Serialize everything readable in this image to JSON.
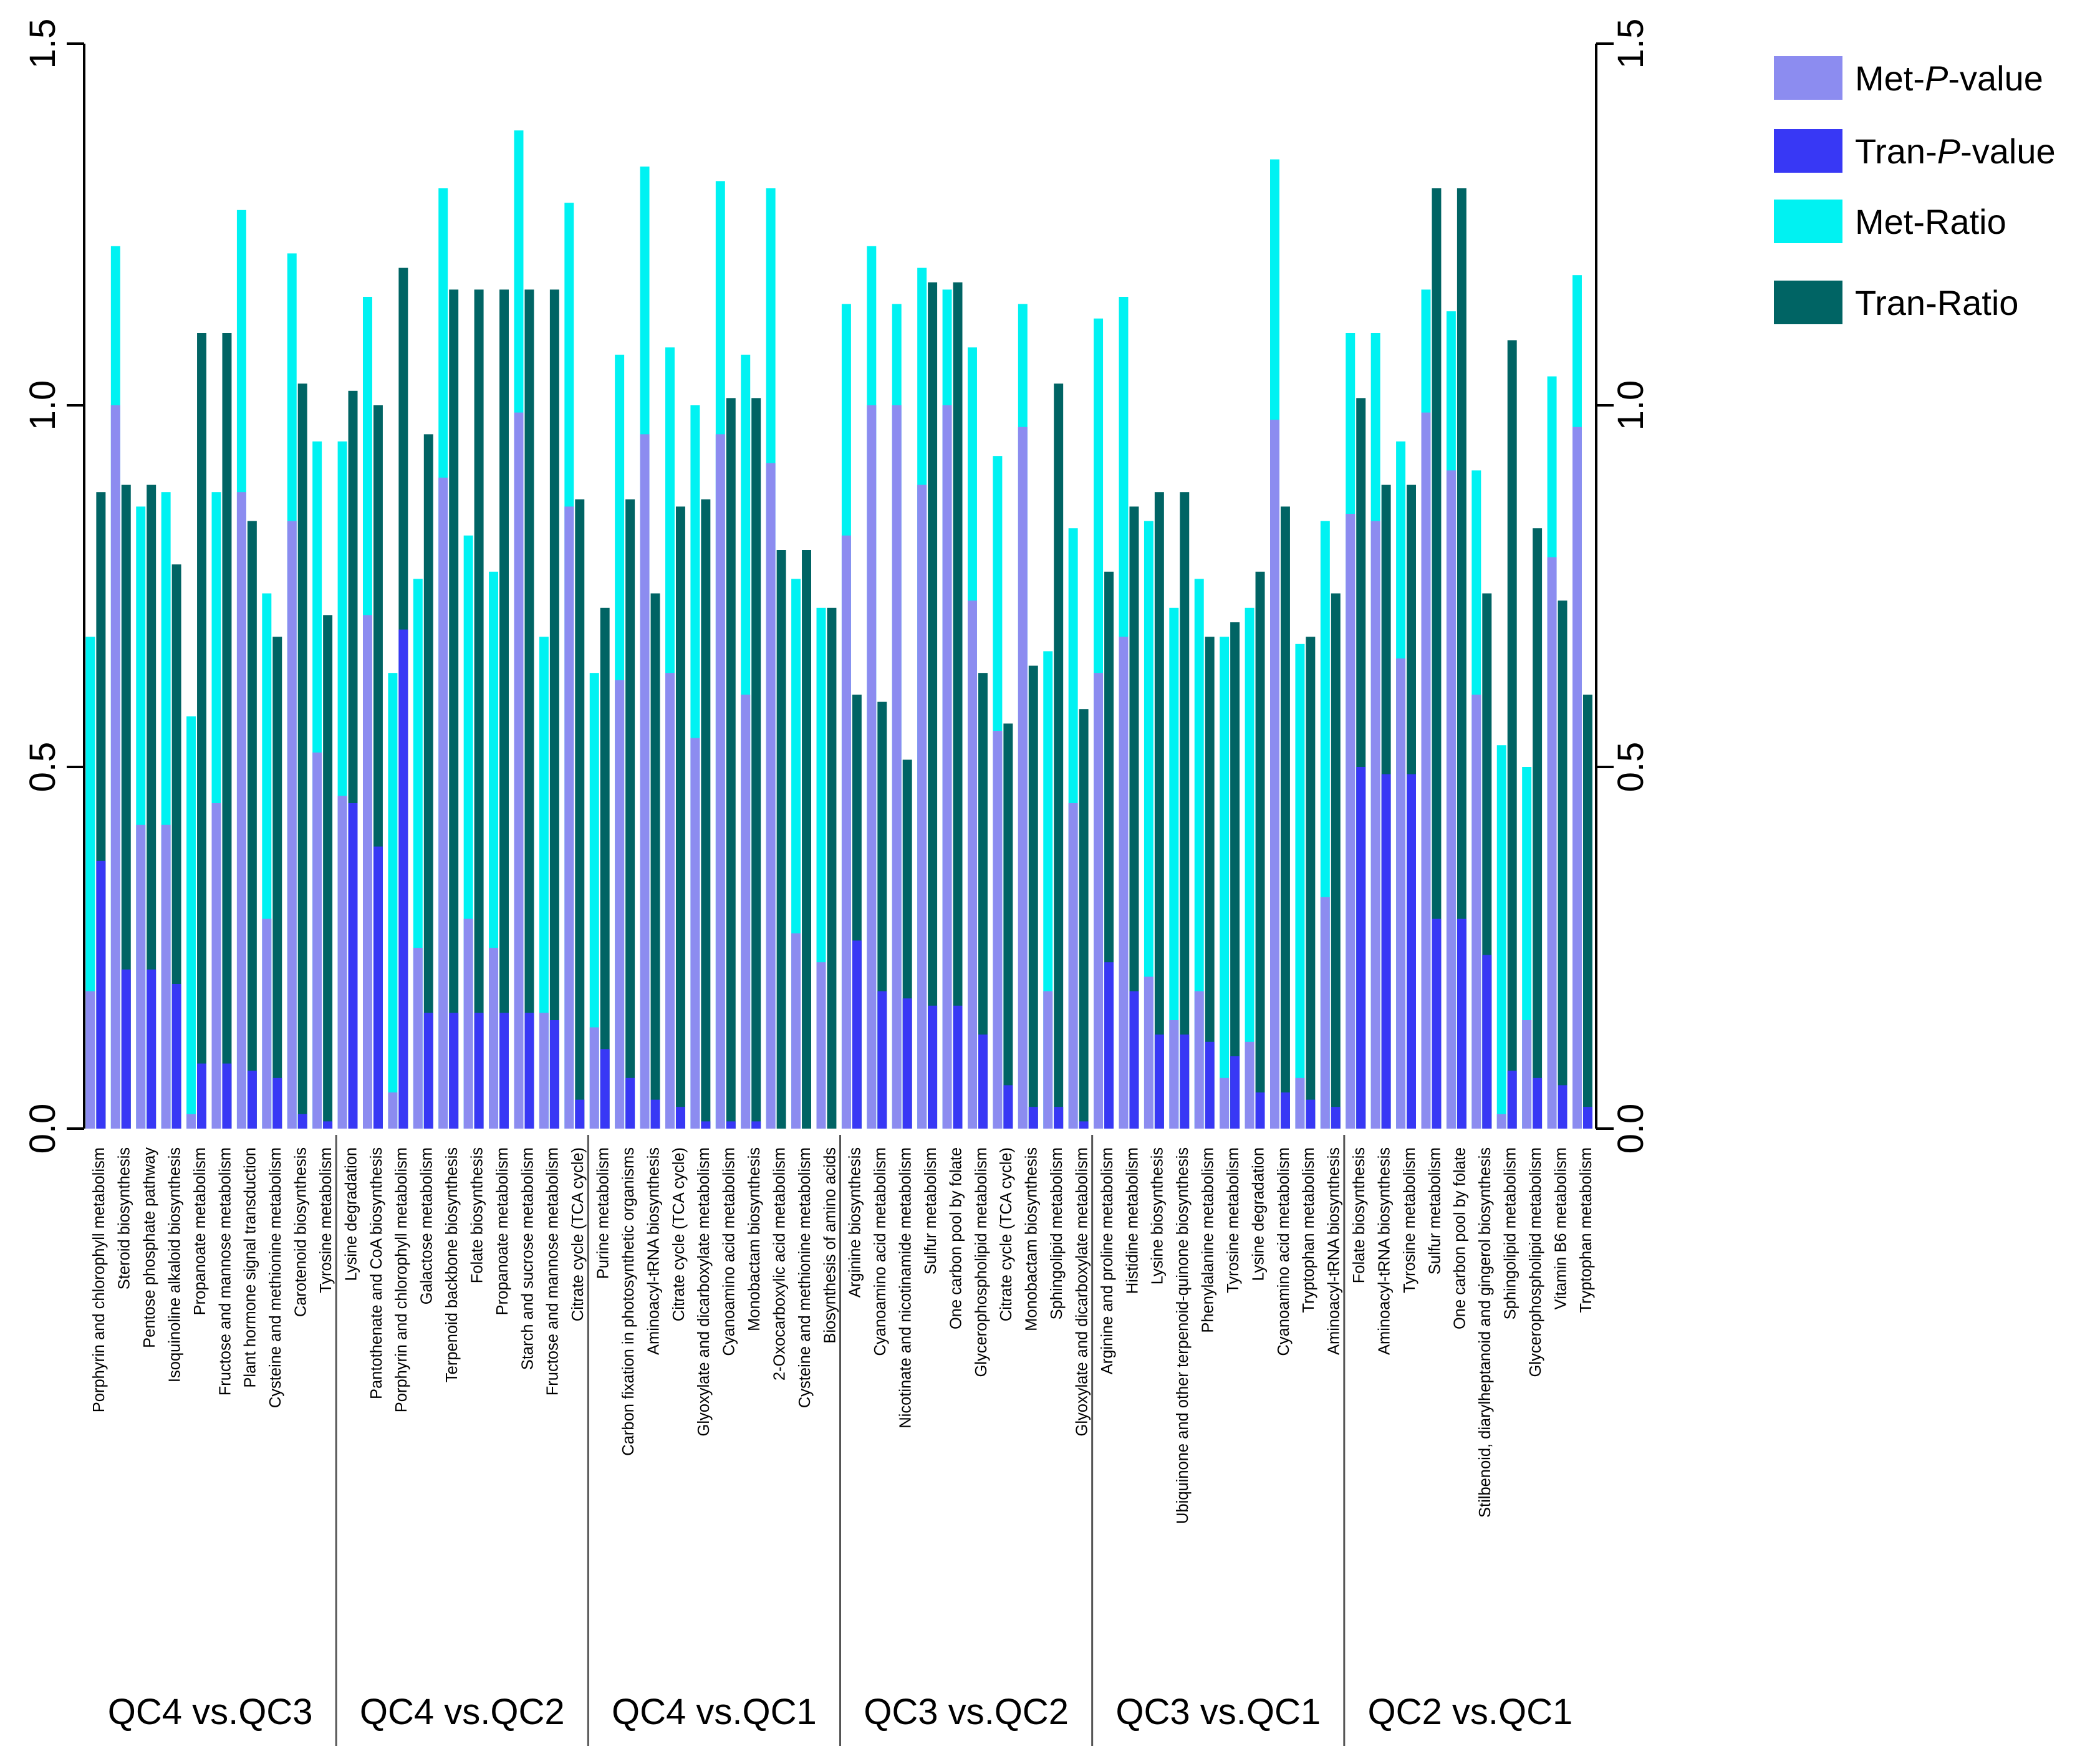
{
  "chart_data": {
    "type": "bar",
    "ylim": [
      0,
      1.5
    ],
    "y_ticks": [
      "0.0",
      "0.5",
      "1.0",
      "1.5"
    ],
    "colors": {
      "met_p": "#8C8CF0",
      "tran_p": "#3838F5",
      "met_ratio": "#00F2F2",
      "tran_ratio": "#006464",
      "axis": "#000000",
      "divider": "#555555"
    },
    "legend": [
      {
        "label": "Met-P-value",
        "prefix": "Met-",
        "italic": "P",
        "suffix": "-value",
        "key": "met_p"
      },
      {
        "label": "Tran-P-value",
        "prefix": "Tran-",
        "italic": "P",
        "suffix": "-value",
        "key": "tran_p"
      },
      {
        "label": "Met-Ratio",
        "prefix": "Met-Ratio",
        "italic": "",
        "suffix": "",
        "key": "met_ratio"
      },
      {
        "label": "Tran-Ratio",
        "prefix": "Tran-Ratio",
        "italic": "",
        "suffix": "",
        "key": "tran_ratio"
      }
    ],
    "groups": [
      {
        "name": "QC4 vs.QC3",
        "items": [
          {
            "label": "Porphyrin and chlorophyll metabolism",
            "met_p": 0.19,
            "met_ratio": 0.68,
            "tran_p": 0.37,
            "tran_ratio": 0.88
          },
          {
            "label": "Steroid biosynthesis",
            "met_p": 1.0,
            "met_ratio": 1.22,
            "tran_p": 0.22,
            "tran_ratio": 0.89
          },
          {
            "label": "Pentose phosphate pathway",
            "met_p": 0.42,
            "met_ratio": 0.86,
            "tran_p": 0.22,
            "tran_ratio": 0.89
          },
          {
            "label": "Isoquinoline alkaloid biosynthesis",
            "met_p": 0.42,
            "met_ratio": 0.88,
            "tran_p": 0.2,
            "tran_ratio": 0.78
          },
          {
            "label": "Propanoate metabolism",
            "met_p": 0.02,
            "met_ratio": 0.57,
            "tran_p": 0.09,
            "tran_ratio": 1.1
          },
          {
            "label": "Fructose and mannose metabolism",
            "met_p": 0.45,
            "met_ratio": 0.88,
            "tran_p": 0.09,
            "tran_ratio": 1.1
          },
          {
            "label": "Plant hormone signal transduction",
            "met_p": 0.88,
            "met_ratio": 1.27,
            "tran_p": 0.08,
            "tran_ratio": 0.84
          },
          {
            "label": "Cysteine and methionine metabolism",
            "met_p": 0.29,
            "met_ratio": 0.74,
            "tran_p": 0.07,
            "tran_ratio": 0.68
          },
          {
            "label": "Carotenoid biosynthesis",
            "met_p": 0.84,
            "met_ratio": 1.21,
            "tran_p": 0.02,
            "tran_ratio": 1.03
          },
          {
            "label": "Tyrosine metabolism",
            "met_p": 0.52,
            "met_ratio": 0.95,
            "tran_p": 0.01,
            "tran_ratio": 0.71
          }
        ]
      },
      {
        "name": "QC4 vs.QC2",
        "items": [
          {
            "label": "Lysine degradation",
            "met_p": 0.46,
            "met_ratio": 0.95,
            "tran_p": 0.45,
            "tran_ratio": 1.02
          },
          {
            "label": "Pantothenate and CoA biosynthesis",
            "met_p": 0.71,
            "met_ratio": 1.15,
            "tran_p": 0.39,
            "tran_ratio": 1.0
          },
          {
            "label": "Porphyrin and chlorophyll metabolism",
            "met_p": 0.05,
            "met_ratio": 0.63,
            "tran_p": 0.69,
            "tran_ratio": 1.19
          },
          {
            "label": "Galactose metabolism",
            "met_p": 0.25,
            "met_ratio": 0.76,
            "tran_p": 0.16,
            "tran_ratio": 0.96
          },
          {
            "label": "Terpenoid backbone biosynthesis",
            "met_p": 0.9,
            "met_ratio": 1.3,
            "tran_p": 0.16,
            "tran_ratio": 1.16
          },
          {
            "label": "Folate biosynthesis",
            "met_p": 0.29,
            "met_ratio": 0.82,
            "tran_p": 0.16,
            "tran_ratio": 1.16
          },
          {
            "label": "Propanoate metabolism",
            "met_p": 0.25,
            "met_ratio": 0.77,
            "tran_p": 0.16,
            "tran_ratio": 1.16
          },
          {
            "label": "Starch and sucrose metabolism",
            "met_p": 0.99,
            "met_ratio": 1.38,
            "tran_p": 0.16,
            "tran_ratio": 1.16
          },
          {
            "label": "Fructose and mannose metabolism",
            "met_p": 0.16,
            "met_ratio": 0.68,
            "tran_p": 0.15,
            "tran_ratio": 1.16
          },
          {
            "label": "Citrate cycle (TCA cycle)",
            "met_p": 0.86,
            "met_ratio": 1.28,
            "tran_p": 0.04,
            "tran_ratio": 0.87
          }
        ]
      },
      {
        "name": "QC4 vs.QC1",
        "items": [
          {
            "label": "Purine metabolism",
            "met_p": 0.14,
            "met_ratio": 0.63,
            "tran_p": 0.11,
            "tran_ratio": 0.72
          },
          {
            "label": "Carbon fixation in photosynthetic organisms",
            "met_p": 0.62,
            "met_ratio": 1.07,
            "tran_p": 0.07,
            "tran_ratio": 0.87
          },
          {
            "label": "Aminoacyl-tRNA biosynthesis",
            "met_p": 0.96,
            "met_ratio": 1.33,
            "tran_p": 0.04,
            "tran_ratio": 0.74
          },
          {
            "label": "Citrate cycle (TCA cycle)",
            "met_p": 0.63,
            "met_ratio": 1.08,
            "tran_p": 0.03,
            "tran_ratio": 0.86
          },
          {
            "label": "Glyoxylate and dicarboxylate metabolism",
            "met_p": 0.54,
            "met_ratio": 1.0,
            "tran_p": 0.01,
            "tran_ratio": 0.87
          },
          {
            "label": "Cyanoamino acid metabolism",
            "met_p": 0.96,
            "met_ratio": 1.31,
            "tran_p": 0.01,
            "tran_ratio": 1.01
          },
          {
            "label": "Monobactam biosynthesis",
            "met_p": 0.6,
            "met_ratio": 1.07,
            "tran_p": 0.01,
            "tran_ratio": 1.01
          },
          {
            "label": "2-Oxocarboxylic acid metabolism",
            "met_p": 0.92,
            "met_ratio": 1.3,
            "tran_p": 0.0,
            "tran_ratio": 0.8
          },
          {
            "label": "Cysteine and methionine metabolism",
            "met_p": 0.27,
            "met_ratio": 0.76,
            "tran_p": 0.0,
            "tran_ratio": 0.8
          },
          {
            "label": "Biosynthesis of amino acids",
            "met_p": 0.23,
            "met_ratio": 0.72,
            "tran_p": 0.0,
            "tran_ratio": 0.72
          }
        ]
      },
      {
        "name": "QC3 vs.QC2",
        "items": [
          {
            "label": "Arginine biosynthesis",
            "met_p": 0.82,
            "met_ratio": 1.14,
            "tran_p": 0.26,
            "tran_ratio": 0.6
          },
          {
            "label": "Cyanoamino acid metabolism",
            "met_p": 1.0,
            "met_ratio": 1.22,
            "tran_p": 0.19,
            "tran_ratio": 0.59
          },
          {
            "label": "Nicotinate and nicotinamide metabolism",
            "met_p": 1.0,
            "met_ratio": 1.14,
            "tran_p": 0.18,
            "tran_ratio": 0.51
          },
          {
            "label": "Sulfur metabolism",
            "met_p": 0.89,
            "met_ratio": 1.19,
            "tran_p": 0.17,
            "tran_ratio": 1.17
          },
          {
            "label": "One carbon pool by folate",
            "met_p": 1.0,
            "met_ratio": 1.16,
            "tran_p": 0.17,
            "tran_ratio": 1.17
          },
          {
            "label": "Glycerophospholipid metabolism",
            "met_p": 0.73,
            "met_ratio": 1.08,
            "tran_p": 0.13,
            "tran_ratio": 0.63
          },
          {
            "label": "Citrate cycle (TCA cycle)",
            "met_p": 0.55,
            "met_ratio": 0.93,
            "tran_p": 0.06,
            "tran_ratio": 0.56
          },
          {
            "label": "Monobactam biosynthesis",
            "met_p": 0.97,
            "met_ratio": 1.14,
            "tran_p": 0.03,
            "tran_ratio": 0.64
          },
          {
            "label": "Sphingolipid metabolism",
            "met_p": 0.19,
            "met_ratio": 0.66,
            "tran_p": 0.03,
            "tran_ratio": 1.03
          },
          {
            "label": "Glyoxylate and dicarboxylate metabolism",
            "met_p": 0.45,
            "met_ratio": 0.83,
            "tran_p": 0.01,
            "tran_ratio": 0.58
          }
        ]
      },
      {
        "name": "QC3 vs.QC1",
        "items": [
          {
            "label": "Arginine and proline metabolism",
            "met_p": 0.63,
            "met_ratio": 1.12,
            "tran_p": 0.23,
            "tran_ratio": 0.77
          },
          {
            "label": "Histidine metabolism",
            "met_p": 0.68,
            "met_ratio": 1.15,
            "tran_p": 0.19,
            "tran_ratio": 0.86
          },
          {
            "label": "Lysine biosynthesis",
            "met_p": 0.21,
            "met_ratio": 0.84,
            "tran_p": 0.13,
            "tran_ratio": 0.88
          },
          {
            "label": "Ubiquinone and other terpenoid-quinone biosynthesis",
            "met_p": 0.15,
            "met_ratio": 0.72,
            "tran_p": 0.13,
            "tran_ratio": 0.88
          },
          {
            "label": "Phenylalanine metabolism",
            "met_p": 0.19,
            "met_ratio": 0.76,
            "tran_p": 0.12,
            "tran_ratio": 0.68
          },
          {
            "label": "Tyrosine metabolism",
            "met_p": 0.07,
            "met_ratio": 0.68,
            "tran_p": 0.1,
            "tran_ratio": 0.7
          },
          {
            "label": "Lysine degradation",
            "met_p": 0.12,
            "met_ratio": 0.72,
            "tran_p": 0.05,
            "tran_ratio": 0.77
          },
          {
            "label": "Cyanoamino acid metabolism",
            "met_p": 0.98,
            "met_ratio": 1.34,
            "tran_p": 0.05,
            "tran_ratio": 0.86
          },
          {
            "label": "Tryptophan metabolism",
            "met_p": 0.07,
            "met_ratio": 0.67,
            "tran_p": 0.04,
            "tran_ratio": 0.68
          },
          {
            "label": "Aminoacyl-tRNA biosynthesis",
            "met_p": 0.32,
            "met_ratio": 0.84,
            "tran_p": 0.03,
            "tran_ratio": 0.74
          }
        ]
      },
      {
        "name": "QC2 vs.QC1",
        "items": [
          {
            "label": "Folate biosynthesis",
            "met_p": 0.85,
            "met_ratio": 1.1,
            "tran_p": 0.5,
            "tran_ratio": 1.01
          },
          {
            "label": "Aminoacyl-tRNA biosynthesis",
            "met_p": 0.84,
            "met_ratio": 1.1,
            "tran_p": 0.49,
            "tran_ratio": 0.89
          },
          {
            "label": "Tyrosine metabolism",
            "met_p": 0.65,
            "met_ratio": 0.95,
            "tran_p": 0.49,
            "tran_ratio": 0.89
          },
          {
            "label": "Sulfur metabolism",
            "met_p": 0.99,
            "met_ratio": 1.16,
            "tran_p": 0.29,
            "tran_ratio": 1.3
          },
          {
            "label": "One carbon pool by folate",
            "met_p": 0.91,
            "met_ratio": 1.13,
            "tran_p": 0.29,
            "tran_ratio": 1.3
          },
          {
            "label": "Stilbenoid, diarylheptanoid and gingerol biosynthesis",
            "met_p": 0.6,
            "met_ratio": 0.91,
            "tran_p": 0.24,
            "tran_ratio": 0.74
          },
          {
            "label": "Sphingolipid metabolism",
            "met_p": 0.02,
            "met_ratio": 0.53,
            "tran_p": 0.08,
            "tran_ratio": 1.09
          },
          {
            "label": "Glycerophospholipid metabolism",
            "met_p": 0.15,
            "met_ratio": 0.5,
            "tran_p": 0.07,
            "tran_ratio": 0.83
          },
          {
            "label": "Vitamin B6 metabolism",
            "met_p": 0.79,
            "met_ratio": 1.04,
            "tran_p": 0.06,
            "tran_ratio": 0.73
          },
          {
            "label": "Tryptophan metabolism",
            "met_p": 0.97,
            "met_ratio": 1.18,
            "tran_p": 0.03,
            "tran_ratio": 0.6
          }
        ]
      }
    ]
  }
}
